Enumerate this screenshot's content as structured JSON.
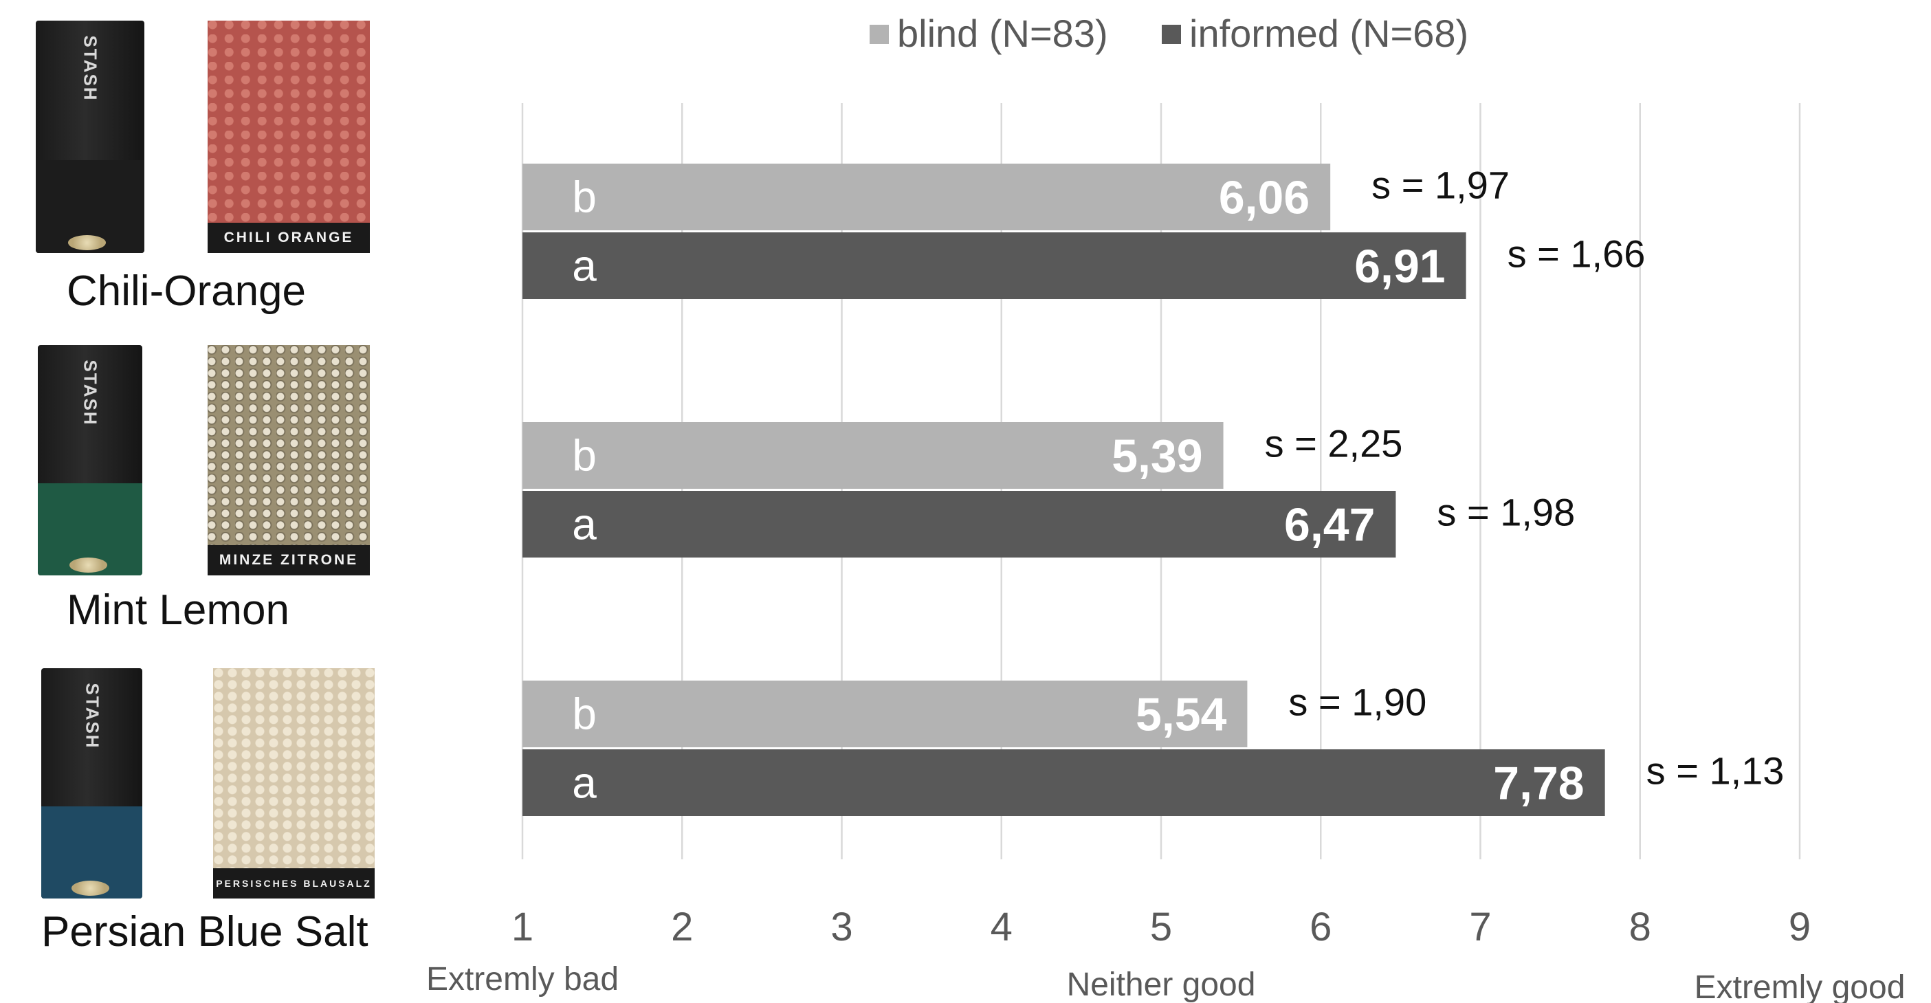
{
  "products": [
    {
      "name": "Chili-Orange",
      "can_brand": "STASH",
      "pack_label": "CHILI ORANGE",
      "texture_color": "#b5544d",
      "band_color": "#1c1c1c"
    },
    {
      "name": "Mint Lemon",
      "can_brand": "STASH",
      "pack_label": "MINZE ZITRONE",
      "texture_color": "#9a8f72",
      "band_color": "#1f5a44"
    },
    {
      "name": "Persian Blue Salt",
      "can_brand": "STASH",
      "pack_label": "PERSISCHES BLAUSALZ",
      "texture_color": "#d6c8ad",
      "band_color": "#1f4a63"
    }
  ],
  "chart_data": {
    "type": "bar",
    "orientation": "horizontal",
    "categories": [
      "Chili-Orange",
      "Mint Lemon",
      "Persian Blue Salt"
    ],
    "series": [
      {
        "name": "blind (N=83)",
        "color": "#b3b3b3",
        "values": [
          6.06,
          5.39,
          5.54
        ],
        "value_labels": [
          "6,06",
          "5,39",
          "5,54"
        ],
        "std_labels": [
          "s = 1,97",
          "s = 2,25",
          "s = 1,90"
        ],
        "letters": [
          "b",
          "b",
          "b"
        ]
      },
      {
        "name": "informed (N=68)",
        "color": "#595959",
        "values": [
          6.91,
          6.47,
          7.78
        ],
        "value_labels": [
          "6,91",
          "6,47",
          "7,78"
        ],
        "std_labels": [
          "s = 1,66",
          "s = 1,98",
          "s = 1,13"
        ],
        "letters": [
          "a",
          "a",
          "a"
        ]
      }
    ],
    "xlim": [
      1,
      9
    ],
    "xticks": [
      "1",
      "2",
      "3",
      "4",
      "5",
      "6",
      "7",
      "8",
      "9"
    ],
    "axis_annotations": [
      {
        "text": "Extremly bad",
        "at": 1
      },
      {
        "text": "Neither good",
        "at": 5
      },
      {
        "text": "Extremly good",
        "at": 9
      }
    ],
    "grid": true,
    "legend_position": "top"
  }
}
